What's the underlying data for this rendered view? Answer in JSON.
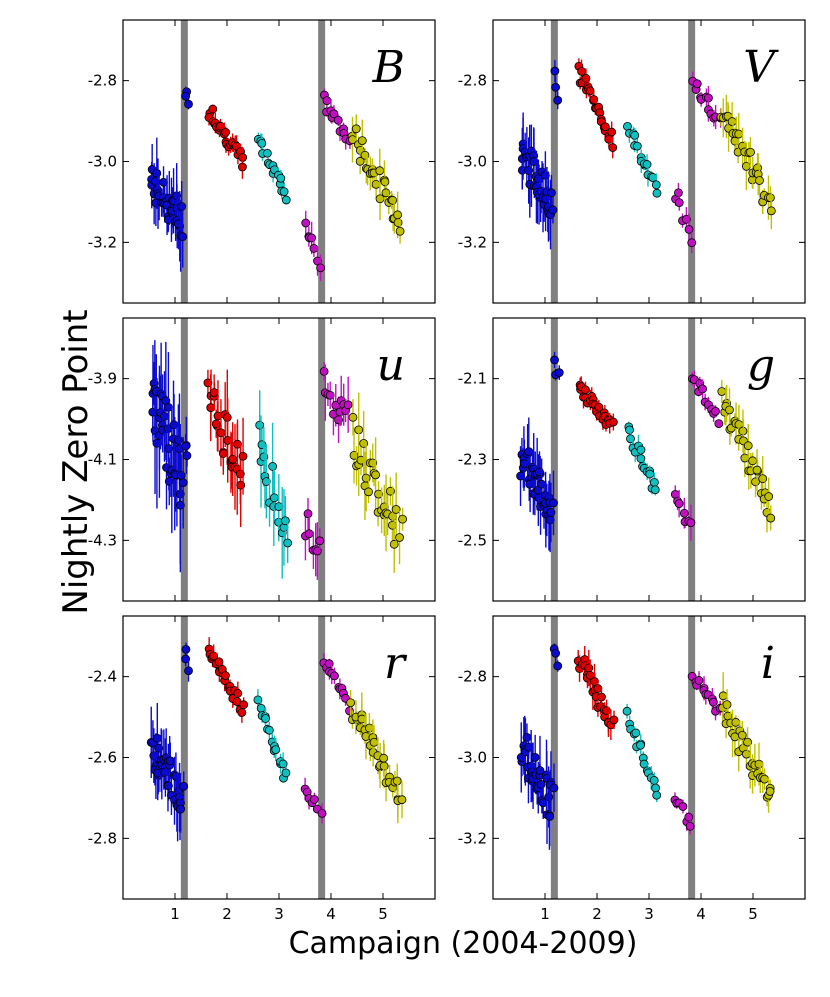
{
  "figure": {
    "ylabel": "Nightly Zero Point",
    "xlabel": "Campaign (2004-2009)"
  },
  "colors": {
    "campaign1": "#0b0bd0",
    "campaign2": "#e00000",
    "campaign3": "#10c0c0",
    "campaign4": "#c010c0",
    "campaign5": "#c0c000",
    "divider": "#808080"
  },
  "chart_data": [
    {
      "type": "scatter",
      "panel": "B",
      "label": "B",
      "xlim": [
        0.0,
        6.0
      ],
      "ylim": [
        -3.35,
        -2.65
      ],
      "yticks": [
        -3.2,
        -3.0,
        -2.8
      ],
      "ytick_labels": [
        "-3.2",
        "-3.0",
        "-2.8"
      ],
      "xticks": [
        1,
        2,
        3,
        4,
        5
      ],
      "xtick_labels": [],
      "vlines": [
        1.18,
        3.82
      ],
      "series": [
        {
          "name": "Campaign 1",
          "color": "#0b0bd0",
          "x_range": [
            0.55,
            1.15
          ],
          "y_start": -3.05,
          "y_end": -3.15,
          "err": 0.06
        },
        {
          "name": "Campaign 1 late",
          "color": "#0b0bd0",
          "x_range": [
            1.2,
            1.25
          ],
          "y_start": -2.82,
          "y_end": -2.87,
          "err": 0.02
        },
        {
          "name": "Campaign 2",
          "color": "#e00000",
          "x_range": [
            1.65,
            2.3
          ],
          "y_start": -2.87,
          "y_end": -3.0,
          "err": 0.02
        },
        {
          "name": "Campaign 3",
          "color": "#10c0c0",
          "x_range": [
            2.6,
            3.15
          ],
          "y_start": -2.95,
          "y_end": -3.08,
          "err": 0.02
        },
        {
          "name": "Campaign 4 early",
          "color": "#c010c0",
          "x_range": [
            3.5,
            3.8
          ],
          "y_start": -3.15,
          "y_end": -3.25,
          "err": 0.03
        },
        {
          "name": "Campaign 4",
          "color": "#c010c0",
          "x_range": [
            3.85,
            4.35
          ],
          "y_start": -2.85,
          "y_end": -2.95,
          "err": 0.02
        },
        {
          "name": "Campaign 5",
          "color": "#c0c000",
          "x_range": [
            4.4,
            5.35
          ],
          "y_start": -2.93,
          "y_end": -3.15,
          "err": 0.04
        }
      ]
    },
    {
      "type": "scatter",
      "panel": "V",
      "label": "V",
      "xlim": [
        0.0,
        6.0
      ],
      "ylim": [
        -3.35,
        -2.65
      ],
      "yticks": [
        -3.2,
        -3.0,
        -2.8
      ],
      "ytick_labels": [
        "-3.2",
        "-3.0",
        "-2.8"
      ],
      "xticks": [
        1,
        2,
        3,
        4,
        5
      ],
      "xtick_labels": [],
      "vlines": [
        1.18,
        3.82
      ],
      "series": [
        {
          "name": "Campaign 1",
          "color": "#0b0bd0",
          "x_range": [
            0.55,
            1.15
          ],
          "y_start": -2.98,
          "y_end": -3.1,
          "err": 0.06
        },
        {
          "name": "Campaign 1 late",
          "color": "#0b0bd0",
          "x_range": [
            1.2,
            1.25
          ],
          "y_start": -2.77,
          "y_end": -2.84,
          "err": 0.02
        },
        {
          "name": "Campaign 2",
          "color": "#e00000",
          "x_range": [
            1.65,
            2.3
          ],
          "y_start": -2.78,
          "y_end": -2.95,
          "err": 0.02
        },
        {
          "name": "Campaign 3",
          "color": "#10c0c0",
          "x_range": [
            2.6,
            3.15
          ],
          "y_start": -2.92,
          "y_end": -3.07,
          "err": 0.02
        },
        {
          "name": "Campaign 4 early",
          "color": "#c010c0",
          "x_range": [
            3.5,
            3.8
          ],
          "y_start": -3.08,
          "y_end": -3.2,
          "err": 0.03
        },
        {
          "name": "Campaign 4",
          "color": "#c010c0",
          "x_range": [
            3.85,
            4.35
          ],
          "y_start": -2.8,
          "y_end": -2.9,
          "err": 0.02
        },
        {
          "name": "Campaign 5",
          "color": "#c0c000",
          "x_range": [
            4.4,
            5.35
          ],
          "y_start": -2.87,
          "y_end": -3.12,
          "err": 0.04
        }
      ]
    },
    {
      "type": "scatter",
      "panel": "u",
      "label": "u",
      "xlim": [
        0.0,
        6.0
      ],
      "ylim": [
        -4.45,
        -3.75
      ],
      "yticks": [
        -4.3,
        -4.1,
        -3.9
      ],
      "ytick_labels": [
        "-4.3",
        "-4.1",
        "-3.9"
      ],
      "xticks": [
        1,
        2,
        3,
        4,
        5
      ],
      "xtick_labels": [],
      "vlines": [
        1.18,
        3.82
      ],
      "series": [
        {
          "name": "Campaign 1",
          "color": "#0b0bd0",
          "x_range": [
            0.55,
            1.15
          ],
          "y_start": -3.95,
          "y_end": -4.15,
          "err": 0.12
        },
        {
          "name": "Campaign 1 late",
          "color": "#0b0bd0",
          "x_range": [
            1.2,
            1.25
          ],
          "y_start": -4.05,
          "y_end": -4.1,
          "err": 0.06
        },
        {
          "name": "Campaign 2",
          "color": "#e00000",
          "x_range": [
            1.65,
            2.3
          ],
          "y_start": -3.95,
          "y_end": -4.15,
          "err": 0.08
        },
        {
          "name": "Campaign 3",
          "color": "#10c0c0",
          "x_range": [
            2.6,
            3.15
          ],
          "y_start": -4.05,
          "y_end": -4.3,
          "err": 0.08
        },
        {
          "name": "Campaign 4 early",
          "color": "#c010c0",
          "x_range": [
            3.5,
            3.8
          ],
          "y_start": -4.25,
          "y_end": -4.32,
          "err": 0.05
        },
        {
          "name": "Campaign 4",
          "color": "#c010c0",
          "x_range": [
            3.85,
            4.35
          ],
          "y_start": -3.92,
          "y_end": -4.0,
          "err": 0.05
        },
        {
          "name": "Campaign 5",
          "color": "#c0c000",
          "x_range": [
            4.4,
            5.35
          ],
          "y_start": -4.05,
          "y_end": -4.28,
          "err": 0.07
        }
      ]
    },
    {
      "type": "scatter",
      "panel": "g",
      "label": "g",
      "xlim": [
        0.0,
        6.0
      ],
      "ylim": [
        -2.65,
        -1.95
      ],
      "yticks": [
        -2.5,
        -2.3,
        -2.1
      ],
      "ytick_labels": [
        "-2.5",
        "-2.3",
        "-2.1"
      ],
      "xticks": [
        1,
        2,
        3,
        4,
        5
      ],
      "xtick_labels": [],
      "vlines": [
        1.18,
        3.82
      ],
      "series": [
        {
          "name": "Campaign 1",
          "color": "#0b0bd0",
          "x_range": [
            0.55,
            1.15
          ],
          "y_start": -2.3,
          "y_end": -2.42,
          "err": 0.06
        },
        {
          "name": "Campaign 1 late",
          "color": "#0b0bd0",
          "x_range": [
            1.2,
            1.25
          ],
          "y_start": -2.05,
          "y_end": -2.1,
          "err": 0.02
        },
        {
          "name": "Campaign 2",
          "color": "#e00000",
          "x_range": [
            1.65,
            2.3
          ],
          "y_start": -2.12,
          "y_end": -2.22,
          "err": 0.02
        },
        {
          "name": "Campaign 3",
          "color": "#10c0c0",
          "x_range": [
            2.6,
            3.15
          ],
          "y_start": -2.23,
          "y_end": -2.38,
          "err": 0.02
        },
        {
          "name": "Campaign 4 early",
          "color": "#c010c0",
          "x_range": [
            3.5,
            3.8
          ],
          "y_start": -2.4,
          "y_end": -2.48,
          "err": 0.03
        },
        {
          "name": "Campaign 4",
          "color": "#c010c0",
          "x_range": [
            3.85,
            4.35
          ],
          "y_start": -2.1,
          "y_end": -2.2,
          "err": 0.02
        },
        {
          "name": "Campaign 5",
          "color": "#c0c000",
          "x_range": [
            4.4,
            5.35
          ],
          "y_start": -2.15,
          "y_end": -2.42,
          "err": 0.04
        }
      ]
    },
    {
      "type": "scatter",
      "panel": "r",
      "label": "r",
      "xlim": [
        0.0,
        6.0
      ],
      "ylim": [
        -2.95,
        -2.25
      ],
      "yticks": [
        -2.8,
        -2.6,
        -2.4
      ],
      "ytick_labels": [
        "-2.8",
        "-2.6",
        "-2.4"
      ],
      "xticks": [
        1,
        2,
        3,
        4,
        5
      ],
      "xtick_labels": [
        "1",
        "2",
        "3",
        "4",
        "5"
      ],
      "vlines": [
        1.18,
        3.82
      ],
      "series": [
        {
          "name": "Campaign 1",
          "color": "#0b0bd0",
          "x_range": [
            0.55,
            1.15
          ],
          "y_start": -2.57,
          "y_end": -2.7,
          "err": 0.06
        },
        {
          "name": "Campaign 1 late",
          "color": "#0b0bd0",
          "x_range": [
            1.2,
            1.25
          ],
          "y_start": -2.33,
          "y_end": -2.38,
          "err": 0.02
        },
        {
          "name": "Campaign 2",
          "color": "#e00000",
          "x_range": [
            1.65,
            2.3
          ],
          "y_start": -2.33,
          "y_end": -2.48,
          "err": 0.02
        },
        {
          "name": "Campaign 3",
          "color": "#10c0c0",
          "x_range": [
            2.6,
            3.15
          ],
          "y_start": -2.47,
          "y_end": -2.65,
          "err": 0.02
        },
        {
          "name": "Campaign 4 early",
          "color": "#c010c0",
          "x_range": [
            3.5,
            3.8
          ],
          "y_start": -2.68,
          "y_end": -2.73,
          "err": 0.02
        },
        {
          "name": "Campaign 4",
          "color": "#c010c0",
          "x_range": [
            3.85,
            4.35
          ],
          "y_start": -2.35,
          "y_end": -2.48,
          "err": 0.02
        },
        {
          "name": "Campaign 5",
          "color": "#c0c000",
          "x_range": [
            4.4,
            5.35
          ],
          "y_start": -2.47,
          "y_end": -2.7,
          "err": 0.04
        }
      ]
    },
    {
      "type": "scatter",
      "panel": "i",
      "label": "i",
      "xlim": [
        0.0,
        6.0
      ],
      "ylim": [
        -3.35,
        -2.65
      ],
      "yticks": [
        -3.2,
        -3.0,
        -2.8
      ],
      "ytick_labels": [
        "-3.2",
        "-3.0",
        "-2.8"
      ],
      "xticks": [
        1,
        2,
        3,
        4,
        5
      ],
      "xtick_labels": [
        "1",
        "2",
        "3",
        "4",
        "5"
      ],
      "vlines": [
        1.18,
        3.82
      ],
      "series": [
        {
          "name": "Campaign 1",
          "color": "#0b0bd0",
          "x_range": [
            0.55,
            1.15
          ],
          "y_start": -2.97,
          "y_end": -3.12,
          "err": 0.06
        },
        {
          "name": "Campaign 1 late",
          "color": "#0b0bd0",
          "x_range": [
            1.2,
            1.25
          ],
          "y_start": -2.73,
          "y_end": -2.78,
          "err": 0.02
        },
        {
          "name": "Campaign 2",
          "color": "#e00000",
          "x_range": [
            1.65,
            2.3
          ],
          "y_start": -2.75,
          "y_end": -2.92,
          "err": 0.03
        },
        {
          "name": "Campaign 3",
          "color": "#10c0c0",
          "x_range": [
            2.6,
            3.15
          ],
          "y_start": -2.9,
          "y_end": -3.08,
          "err": 0.02
        },
        {
          "name": "Campaign 4 early",
          "color": "#c010c0",
          "x_range": [
            3.5,
            3.8
          ],
          "y_start": -3.1,
          "y_end": -3.17,
          "err": 0.02
        },
        {
          "name": "Campaign 4",
          "color": "#c010c0",
          "x_range": [
            3.85,
            4.35
          ],
          "y_start": -2.8,
          "y_end": -2.88,
          "err": 0.02
        },
        {
          "name": "Campaign 5",
          "color": "#c0c000",
          "x_range": [
            4.4,
            5.35
          ],
          "y_start": -2.87,
          "y_end": -3.1,
          "err": 0.04
        }
      ]
    }
  ]
}
